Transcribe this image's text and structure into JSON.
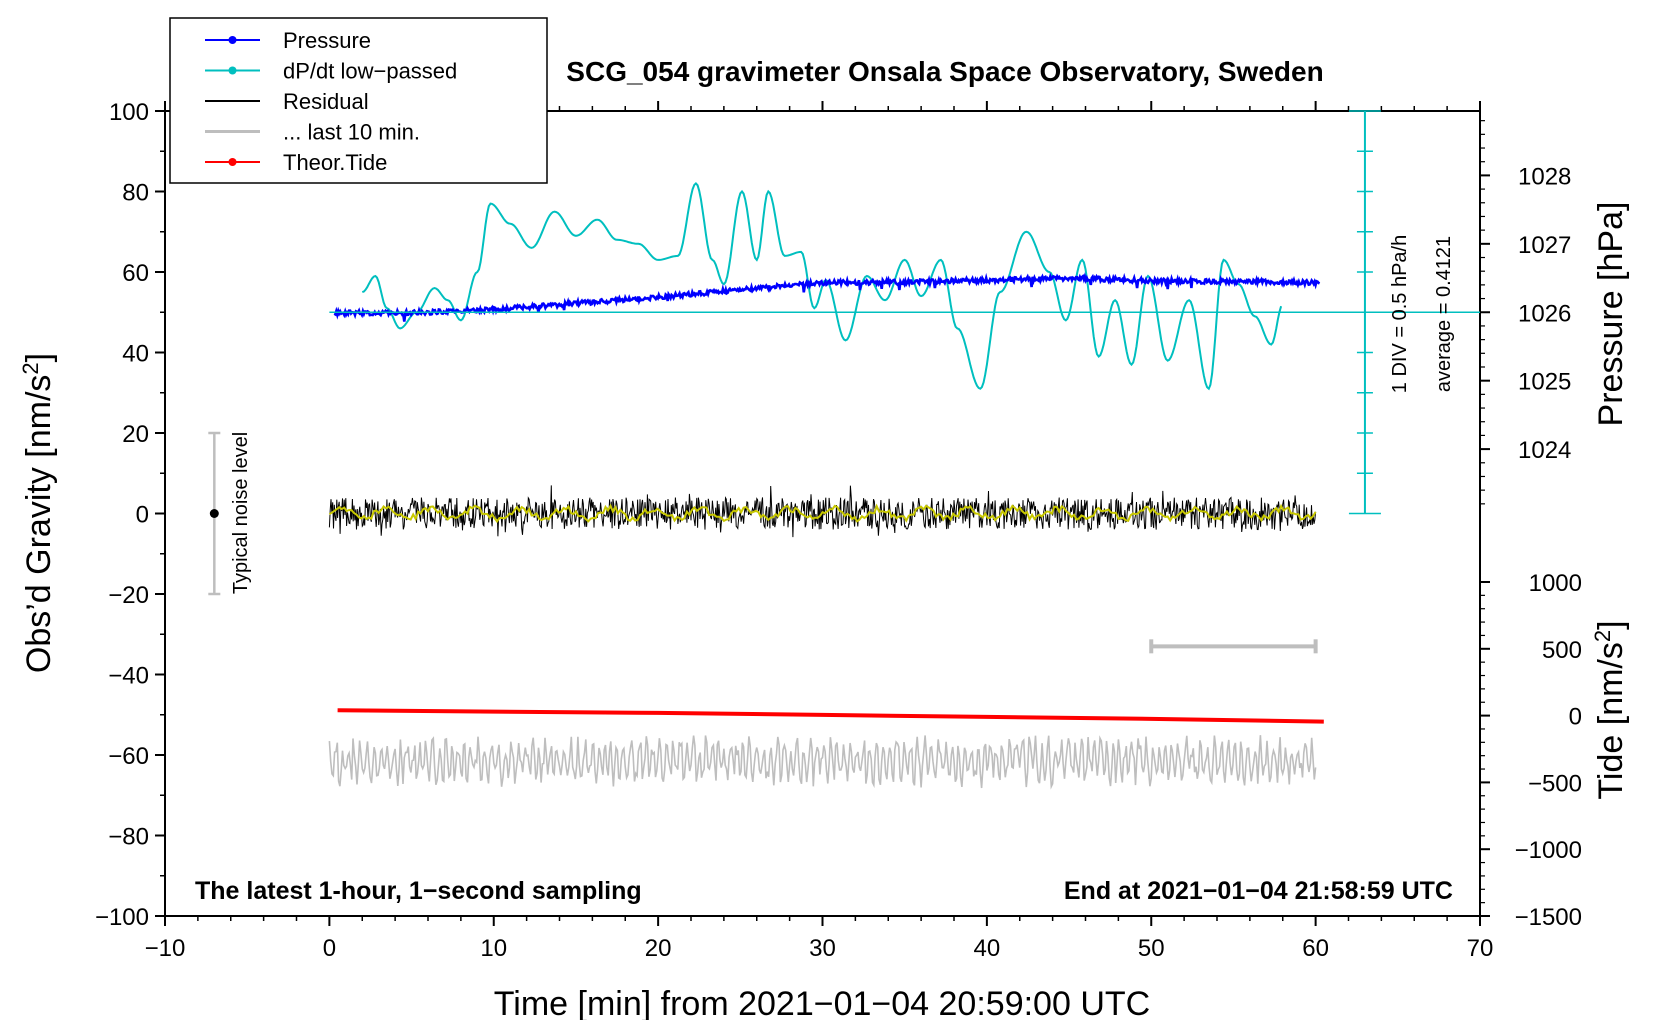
{
  "chart_data": {
    "type": "line",
    "title": "SCG_054 gravimeter Onsala Space Observatory, Sweden",
    "xlabel": "Time [min] from 2021−01−04 20:59:00 UTC",
    "ylabel_left": "Obs’d Gravity [nm/s",
    "ylabel_left_sup": "2",
    "ylabel_left_tail": "]",
    "ylabel_right_pressure": "Pressure [hPa]",
    "ylabel_right_tide": "Tide [nm/s",
    "ylabel_right_tide_sup": "2",
    "ylabel_right_tide_tail": "]",
    "xlim": [
      -10,
      70
    ],
    "ylim": [
      -100,
      100
    ],
    "x_ticks": [
      -10,
      0,
      10,
      20,
      30,
      40,
      50,
      60,
      70
    ],
    "x_tick_labels": [
      "−10",
      "0",
      "10",
      "20",
      "30",
      "40",
      "50",
      "60",
      "70"
    ],
    "y_ticks": [
      -100,
      -80,
      -60,
      -40,
      -20,
      0,
      20,
      40,
      60,
      80,
      100
    ],
    "y_tick_labels": [
      "−100",
      "−80",
      "−60",
      "−40",
      "−20",
      "0",
      "20",
      "40",
      "60",
      "80",
      "100"
    ],
    "pressure_axis": {
      "ticks": [
        1024,
        1025,
        1026,
        1027,
        1028
      ],
      "tick_labels": [
        "1024",
        "1025",
        "1026",
        "1027",
        "1028"
      ],
      "range": [
        1023,
        1029
      ]
    },
    "tide_axis": {
      "ticks": [
        -1500,
        -1000,
        -500,
        0,
        500,
        1000
      ],
      "tick_labels": [
        "−1500",
        "−1000",
        "−500",
        "0",
        "500",
        "1000"
      ],
      "range": [
        -1500,
        1100
      ]
    },
    "dpdt_scale": {
      "label": "1 DIV = 0.5 hPa/h",
      "average_label": "average = 0.4121",
      "x": 63,
      "y_range": [
        0,
        100
      ],
      "divisions": 10,
      "baseline_y": 50
    },
    "noise_bar": {
      "x": -7,
      "y": 0,
      "y_range": [
        -20,
        20
      ],
      "label": "Typical noise level"
    },
    "window_bar": {
      "x_range": [
        50,
        60
      ],
      "y": -33
    },
    "notes": {
      "left": "The latest 1-hour, 1−second sampling",
      "right": "End at 2021−01−04 21:58:59 UTC"
    },
    "legend": {
      "position": "top-left",
      "entries": [
        {
          "label": "Pressure",
          "color": "#0000ff",
          "marker": true
        },
        {
          "label": "dP/dt low−passed",
          "color": "#00bfbf",
          "marker": true
        },
        {
          "label": "Residual",
          "color": "#000000",
          "marker": false
        },
        {
          "label": "... last 10 min.",
          "color": "#bebebe",
          "marker": false
        },
        {
          "label": "Theor.Tide",
          "color": "#ff0000",
          "marker": true
        }
      ]
    },
    "series": [
      {
        "name": "Pressure",
        "axis": "pressure_hPa",
        "color": "#0000ff",
        "x": [
          0,
          5,
          10,
          15,
          20,
          25,
          30,
          35,
          40,
          45,
          50,
          55,
          60
        ],
        "values": [
          1025.99,
          1025.99,
          1026.04,
          1026.13,
          1026.22,
          1026.33,
          1026.43,
          1026.44,
          1026.47,
          1026.5,
          1026.46,
          1026.45,
          1026.43
        ]
      },
      {
        "name": "dP/dt low−passed",
        "axis": "left",
        "color": "#00bfbf",
        "x": [
          2,
          2.8,
          3.5,
          4.3,
          5.3,
          6.4,
          7.2,
          8.0,
          9.0,
          9.8,
          11.0,
          12.3,
          13.7,
          15.0,
          16.3,
          17.5,
          18.8,
          20.0,
          21.2,
          22.3,
          23.3,
          24.0,
          25.1,
          26.0,
          26.7,
          27.7,
          28.7,
          29.5,
          30.2,
          31.4,
          32.7,
          33.8,
          35.0,
          36.0,
          37.2,
          38.2,
          39.6,
          40.8,
          42.4,
          43.8,
          44.8,
          45.8,
          46.8,
          47.8,
          48.8,
          49.8,
          51.0,
          52.3,
          53.5,
          54.4,
          55.3,
          56.3,
          57.3,
          58.0
        ],
        "values": [
          55,
          59,
          51,
          46,
          50,
          56,
          53,
          48,
          60,
          77,
          72,
          66,
          75,
          69,
          73,
          68,
          67,
          63,
          64,
          82,
          63,
          57,
          80,
          63,
          80,
          64,
          65,
          51,
          58,
          43,
          59,
          53,
          63,
          54,
          63,
          46,
          31,
          55,
          70,
          60,
          48,
          63,
          39,
          53,
          37,
          59,
          38,
          53,
          31,
          63,
          57,
          49,
          42,
          52
        ]
      },
      {
        "name": "Residual",
        "axis": "left",
        "color": "#000000",
        "x_range": [
          0,
          60
        ],
        "mean": 0,
        "range": [
          -10,
          10
        ]
      },
      {
        "name": "Residual smoothed",
        "axis": "left",
        "color": "#c8c800",
        "x_range": [
          0,
          60
        ],
        "mean": 0,
        "range": [
          -2,
          2
        ]
      },
      {
        "name": "... last 10 min.",
        "axis": "left",
        "color": "#bebebe",
        "x_range": [
          0,
          60
        ],
        "mean": -61,
        "range": [
          -69,
          -54
        ]
      },
      {
        "name": "Theor.Tide",
        "axis": "tide_nm_s2",
        "color": "#ff0000",
        "x": [
          0.5,
          10,
          20,
          30,
          40,
          50,
          60.5
        ],
        "values": [
          40,
          30,
          20,
          5,
          -10,
          -25,
          -45
        ]
      }
    ]
  }
}
